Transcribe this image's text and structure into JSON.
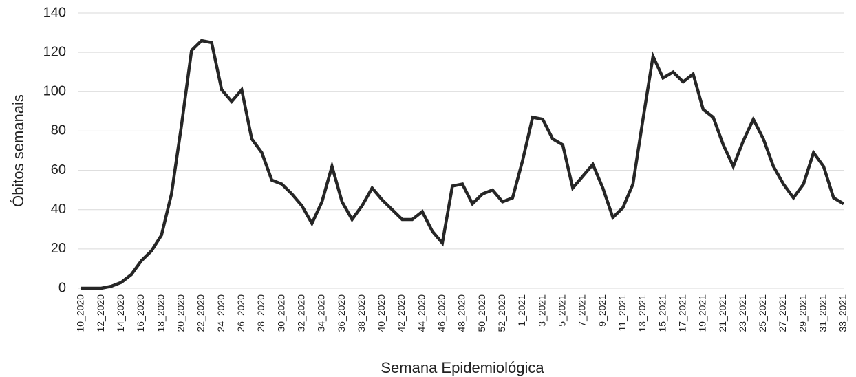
{
  "chart_data": {
    "type": "line",
    "x_label": "Semana Epidemiológica",
    "y_label": "Óbitos semanais",
    "categories": [
      "10_2020",
      null,
      "12_2020",
      null,
      "14_2020",
      null,
      "16_2020",
      null,
      "18_2020",
      null,
      "20_2020",
      null,
      "22_2020",
      null,
      "24_2020",
      null,
      "26_2020",
      null,
      "28_2020",
      null,
      "30_2020",
      null,
      "32_2020",
      null,
      "34_2020",
      null,
      "36_2020",
      null,
      "38_2020",
      null,
      "40_2020",
      null,
      "42_2020",
      null,
      "44_2020",
      null,
      "46_2020",
      null,
      "48_2020",
      null,
      "50_2020",
      null,
      "52_2020",
      null,
      "1_2021",
      null,
      "3_2021",
      null,
      "5_2021",
      null,
      "7_2021",
      null,
      "9_2021",
      null,
      "11_2021",
      null,
      "13_2021",
      null,
      "15_2021",
      null,
      "17_2021",
      null,
      "19_2021",
      null,
      "21_2021",
      null,
      "23_2021",
      null,
      "25_2021",
      null,
      "27_2021",
      null,
      "29_2021",
      null,
      "31_2021",
      null,
      "33_2021"
    ],
    "values": [
      0,
      0,
      0,
      1,
      3,
      7,
      14,
      19,
      27,
      48,
      83,
      121,
      126,
      125,
      101,
      95,
      101,
      76,
      69,
      55,
      53,
      48,
      42,
      33,
      44,
      62,
      44,
      35,
      42,
      51,
      45,
      40,
      35,
      35,
      39,
      29,
      23,
      52,
      53,
      43,
      48,
      50,
      44,
      46,
      65,
      87,
      86,
      76,
      73,
      51,
      57,
      63,
      51,
      36,
      41,
      53,
      86,
      118,
      107,
      110,
      105,
      109,
      91,
      87,
      73,
      62,
      75,
      86,
      76,
      62,
      53,
      46,
      53,
      69,
      62,
      46,
      43
    ],
    "color": "#262626",
    "ylim": [
      0,
      140
    ],
    "yticks": [
      0,
      20,
      40,
      60,
      80,
      100,
      120,
      140
    ],
    "grid": true
  }
}
